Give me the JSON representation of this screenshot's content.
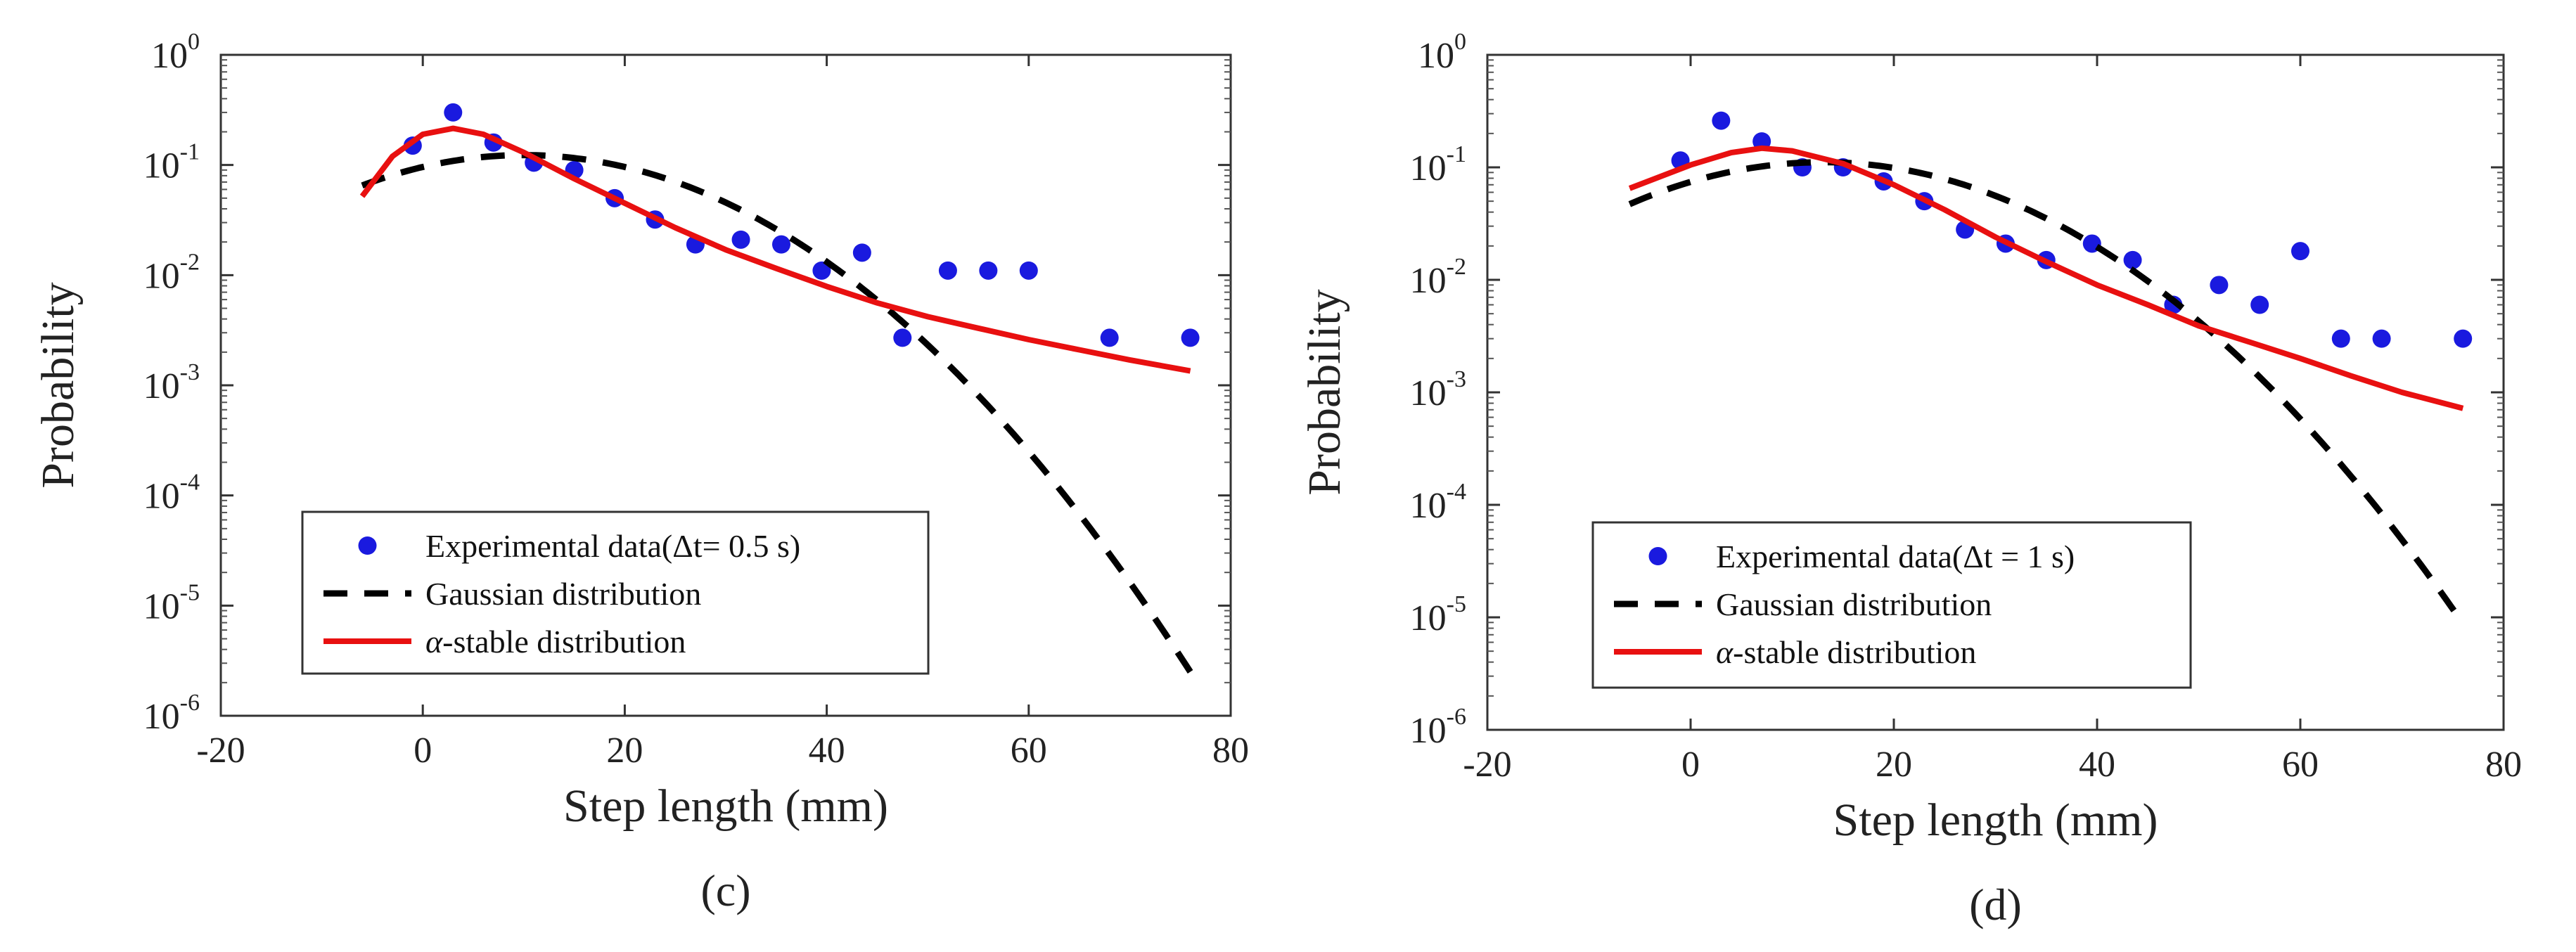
{
  "chart_data": [
    {
      "type": "scatter",
      "panel": "(c)",
      "xlabel": "Step length (mm)",
      "ylabel": "Probability",
      "xlim": [
        -20,
        80
      ],
      "ylim": [
        1e-06,
        1
      ],
      "yscale": "log",
      "x_ticks": [
        -20,
        0,
        20,
        40,
        60,
        80
      ],
      "y_ticks": [
        {
          "base": "10",
          "exp": "0",
          "value": 1
        },
        {
          "base": "10",
          "exp": "-1",
          "value": 0.1
        },
        {
          "base": "10",
          "exp": "-2",
          "value": 0.01
        },
        {
          "base": "10",
          "exp": "-3",
          "value": 0.001
        },
        {
          "base": "10",
          "exp": "-4",
          "value": 0.0001
        },
        {
          "base": "10",
          "exp": "-5",
          "value": 1e-05
        },
        {
          "base": "10",
          "exp": "-6",
          "value": 1e-06
        }
      ],
      "legend": [
        {
          "label": "Experimental data(Δt= 0.5 s)",
          "style": "marker"
        },
        {
          "label": "Gaussian distribution",
          "style": "dashed"
        },
        {
          "label_greek": "α",
          "label_rest": "-stable distribution",
          "style": "solid"
        }
      ],
      "series": [
        {
          "name": "Experimental data(Δt= 0.5 s)",
          "kind": "points",
          "color": "#1a1adf",
          "points": [
            [
              -1,
              0.15
            ],
            [
              3,
              0.3
            ],
            [
              7,
              0.16
            ],
            [
              11,
              0.105
            ],
            [
              15,
              0.09
            ],
            [
              19,
              0.05
            ],
            [
              23,
              0.032
            ],
            [
              27,
              0.019
            ],
            [
              31.5,
              0.021
            ],
            [
              35.5,
              0.019
            ],
            [
              39.5,
              0.011
            ],
            [
              43.5,
              0.016
            ],
            [
              47.5,
              0.0027
            ],
            [
              52,
              0.011
            ],
            [
              56,
              0.011
            ],
            [
              60,
              0.011
            ],
            [
              68,
              0.0027
            ],
            [
              76,
              0.0027
            ]
          ]
        },
        {
          "name": "Gaussian distribution",
          "kind": "gaussian",
          "color": "#000000",
          "peak": 0.123,
          "mu": 10,
          "sigma": 14.2,
          "x_range": [
            -6,
            76
          ]
        },
        {
          "name": "α-stable distribution",
          "kind": "curve",
          "color": "#e81010",
          "points": [
            [
              -6,
              0.052
            ],
            [
              -3,
              0.12
            ],
            [
              0,
              0.19
            ],
            [
              3,
              0.215
            ],
            [
              6,
              0.19
            ],
            [
              10,
              0.13
            ],
            [
              15,
              0.075
            ],
            [
              20,
              0.045
            ],
            [
              25,
              0.027
            ],
            [
              30,
              0.017
            ],
            [
              35,
              0.0115
            ],
            [
              40,
              0.0079
            ],
            [
              45,
              0.0056
            ],
            [
              50,
              0.0042
            ],
            [
              55,
              0.0033
            ],
            [
              60,
              0.0026
            ],
            [
              65,
              0.0021
            ],
            [
              70,
              0.0017
            ],
            [
              76,
              0.00135
            ]
          ]
        }
      ]
    },
    {
      "type": "scatter",
      "panel": "(d)",
      "xlabel": "Step length (mm)",
      "ylabel": "Probability",
      "xlim": [
        -20,
        80
      ],
      "ylim": [
        1e-06,
        1
      ],
      "yscale": "log",
      "x_ticks": [
        -20,
        0,
        20,
        40,
        60,
        80
      ],
      "y_ticks": [
        {
          "base": "10",
          "exp": "0",
          "value": 1
        },
        {
          "base": "10",
          "exp": "-1",
          "value": 0.1
        },
        {
          "base": "10",
          "exp": "-2",
          "value": 0.01
        },
        {
          "base": "10",
          "exp": "-3",
          "value": 0.001
        },
        {
          "base": "10",
          "exp": "-4",
          "value": 0.0001
        },
        {
          "base": "10",
          "exp": "-5",
          "value": 1e-05
        },
        {
          "base": "10",
          "exp": "-6",
          "value": 1e-06
        }
      ],
      "legend": [
        {
          "label": "Experimental data(Δt = 1 s)",
          "style": "marker"
        },
        {
          "label": "Gaussian distribution",
          "style": "dashed"
        },
        {
          "label_greek": "α",
          "label_rest": "-stable distribution",
          "style": "solid"
        }
      ],
      "series": [
        {
          "name": "Experimental data(Δt = 1 s)",
          "kind": "points",
          "color": "#1a1adf",
          "points": [
            [
              -1,
              0.115
            ],
            [
              3,
              0.26
            ],
            [
              7,
              0.17
            ],
            [
              11,
              0.1
            ],
            [
              15,
              0.1
            ],
            [
              19,
              0.075
            ],
            [
              23,
              0.05
            ],
            [
              27,
              0.028
            ],
            [
              31,
              0.021
            ],
            [
              35,
              0.015
            ],
            [
              39.5,
              0.021
            ],
            [
              43.5,
              0.015
            ],
            [
              47.5,
              0.006
            ],
            [
              52,
              0.009
            ],
            [
              56,
              0.006
            ],
            [
              60,
              0.018
            ],
            [
              64,
              0.003
            ],
            [
              68,
              0.003
            ],
            [
              76,
              0.003
            ]
          ]
        },
        {
          "name": "Gaussian distribution",
          "kind": "gaussian",
          "color": "#000000",
          "peak": 0.111,
          "mu": 13,
          "sigma": 14.5,
          "x_range": [
            -6,
            76
          ]
        },
        {
          "name": "α-stable distribution",
          "kind": "curve",
          "color": "#e81010",
          "points": [
            [
              -6,
              0.065
            ],
            [
              0,
              0.105
            ],
            [
              4,
              0.135
            ],
            [
              7,
              0.148
            ],
            [
              10,
              0.14
            ],
            [
              15,
              0.108
            ],
            [
              20,
              0.07
            ],
            [
              25,
              0.042
            ],
            [
              30,
              0.024
            ],
            [
              35,
              0.0145
            ],
            [
              40,
              0.009
            ],
            [
              45,
              0.006
            ],
            [
              50,
              0.0039
            ],
            [
              55,
              0.0028
            ],
            [
              60,
              0.002
            ],
            [
              65,
              0.0014
            ],
            [
              70,
              0.001
            ],
            [
              76,
              0.00072
            ]
          ]
        }
      ]
    }
  ]
}
